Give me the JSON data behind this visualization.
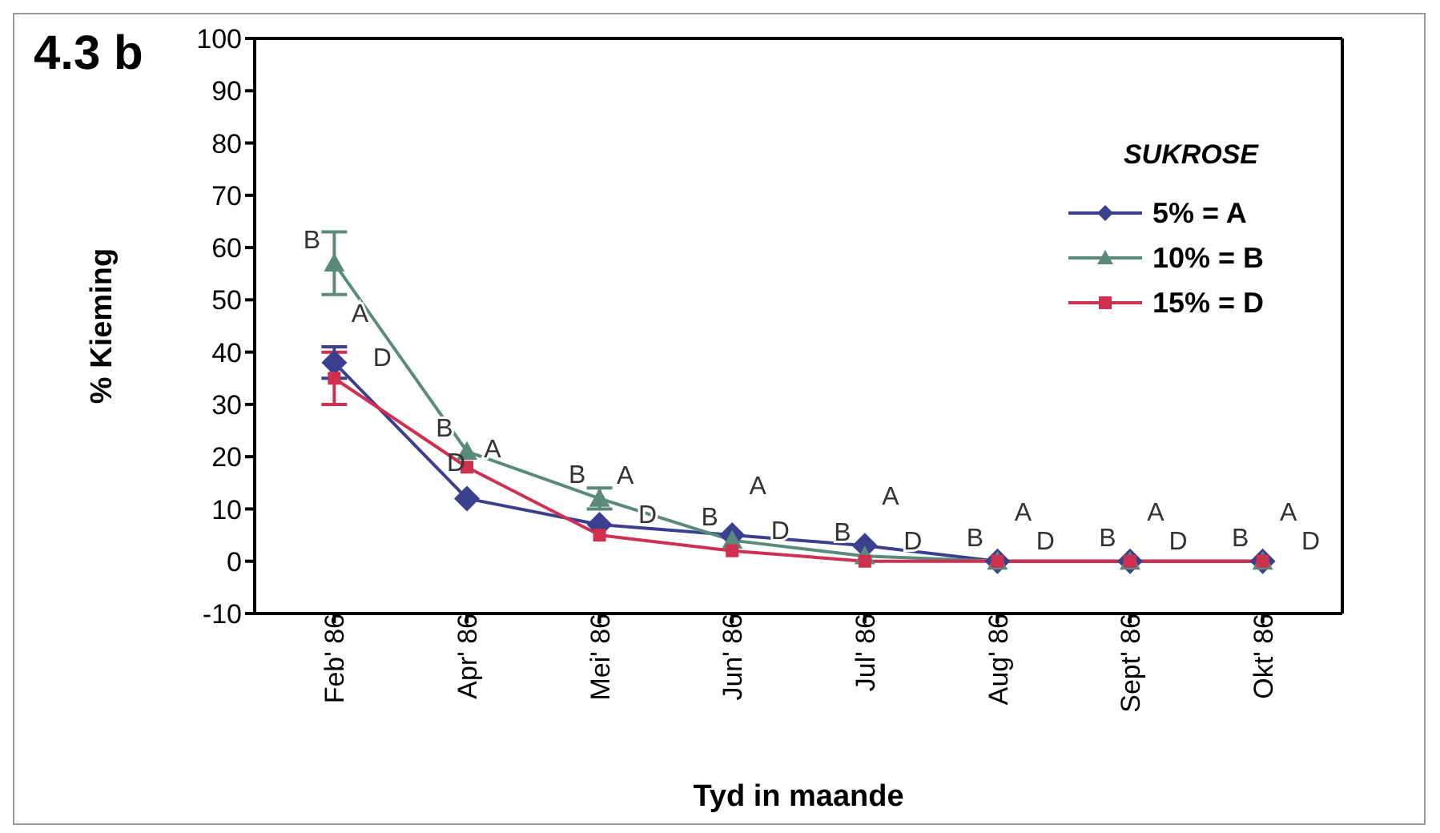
{
  "chart_data": {
    "type": "line",
    "title": "4.3 b",
    "xlabel": "Tyd in maande",
    "ylabel": "% Kieming",
    "legend_title": "SUKROSE",
    "legend": "top right",
    "categories": [
      "Feb' 86",
      "Apr' 86",
      "Mei' 86",
      "Jun' 86",
      "Jul' 86",
      "Aug' 86",
      "Sept' 86",
      "Okt' 86"
    ],
    "ylim": [
      -10,
      100
    ],
    "yticks": [
      -10,
      0,
      10,
      20,
      30,
      40,
      50,
      60,
      70,
      80,
      90,
      100
    ],
    "grid": false,
    "series": [
      {
        "name": "5% = A",
        "color": "#3a3f8f",
        "marker": "diamond",
        "values": [
          38,
          12,
          7,
          5,
          3,
          0,
          0,
          0
        ],
        "errors": [
          3,
          null,
          null,
          null,
          null,
          null,
          null,
          null
        ]
      },
      {
        "name": "10% = B",
        "color": "#5a8a7a",
        "marker": "triangle",
        "values": [
          57,
          21,
          12,
          4,
          1,
          0,
          0,
          0
        ],
        "errors": [
          6,
          null,
          2,
          null,
          null,
          null,
          null,
          null
        ]
      },
      {
        "name": "15% = D",
        "color": "#d03050",
        "marker": "square",
        "values": [
          35,
          18,
          5,
          2,
          0,
          0,
          0,
          0
        ],
        "errors": [
          5,
          null,
          null,
          null,
          null,
          null,
          null,
          null
        ]
      }
    ],
    "annotations": [
      {
        "text": "B",
        "x": "Feb' 86",
        "y": 57
      },
      {
        "text": "A",
        "x": "Feb' 86",
        "y": 38
      },
      {
        "text": "D",
        "x": "Feb' 86",
        "y": 35
      },
      "D",
      {
        "text": "B",
        "x": "Apr' 86",
        "y": 21
      },
      {
        "text": "A",
        "x": "Apr' 86",
        "y": 12
      },
      {
        "text": "B",
        "x": "Mei' 86",
        "y": 12
      },
      {
        "text": "A",
        "x": "Mei' 86",
        "y": 7
      },
      {
        "text": "D",
        "x": "Mei' 86",
        "y": 5
      },
      {
        "text": "B",
        "x": "Jun' 86",
        "y": 4
      },
      {
        "text": "A",
        "x": "Jun' 86",
        "y": 5
      },
      {
        "text": "D",
        "x": "Jun' 86",
        "y": 2
      },
      {
        "text": "B",
        "x": "Jul' 86",
        "y": 1
      },
      {
        "text": "A",
        "x": "Jul' 86",
        "y": 3
      },
      {
        "text": "D",
        "x": "Jul' 86",
        "y": 0
      },
      {
        "text": "B",
        "x": "Aug' 86",
        "y": 0
      },
      {
        "text": "A",
        "x": "Aug' 86",
        "y": 0
      },
      {
        "text": "D",
        "x": "Aug' 86",
        "y": 0
      },
      {
        "text": "B",
        "x": "Sept' 86",
        "y": 0
      },
      {
        "text": "A",
        "x": "Sept' 86",
        "y": 0
      },
      {
        "text": "D",
        "x": "Sept' 86",
        "y": 0
      },
      {
        "text": "B",
        "x": "Okt' 86",
        "y": 0
      },
      {
        "text": "A",
        "x": "Okt' 86",
        "y": 0
      },
      {
        "text": "D",
        "x": "Okt' 86",
        "y": 0
      }
    ]
  }
}
